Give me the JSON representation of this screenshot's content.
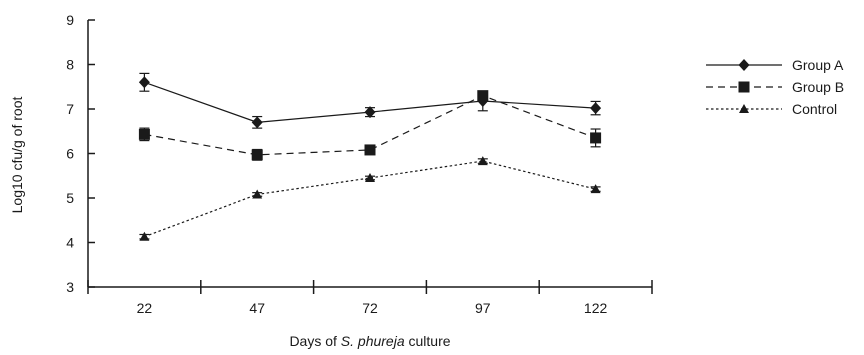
{
  "chart_data": {
    "type": "line",
    "categories": [
      "22",
      "47",
      "72",
      "97",
      "122"
    ],
    "ylabel": "Log10 cfu/g of root",
    "xlabel_parts": [
      "Days of ",
      "S. phureja",
      " culture"
    ],
    "ylim": [
      3,
      9
    ],
    "yticks": [
      "3",
      "4",
      "5",
      "6",
      "7",
      "8",
      "9"
    ],
    "grid": false,
    "legend_position": "right",
    "series": [
      {
        "name": "Group A",
        "marker": "diamond",
        "line_style": "solid",
        "values": [
          7.6,
          6.7,
          6.93,
          7.18,
          7.02
        ],
        "errors": [
          0.2,
          0.13,
          0.1,
          0.22,
          0.15
        ]
      },
      {
        "name": "Group B",
        "marker": "square",
        "line_style": "dashed",
        "values": [
          6.43,
          5.97,
          6.08,
          7.3,
          6.35
        ],
        "errors": [
          0.14,
          0.12,
          0.1,
          0.07,
          0.2
        ]
      },
      {
        "name": "Control",
        "marker": "triangle",
        "line_style": "dotted",
        "values": [
          4.13,
          5.08,
          5.45,
          5.83,
          5.2
        ],
        "errors": [
          0.05,
          0.04,
          0.04,
          0.05,
          0.05
        ]
      }
    ]
  }
}
